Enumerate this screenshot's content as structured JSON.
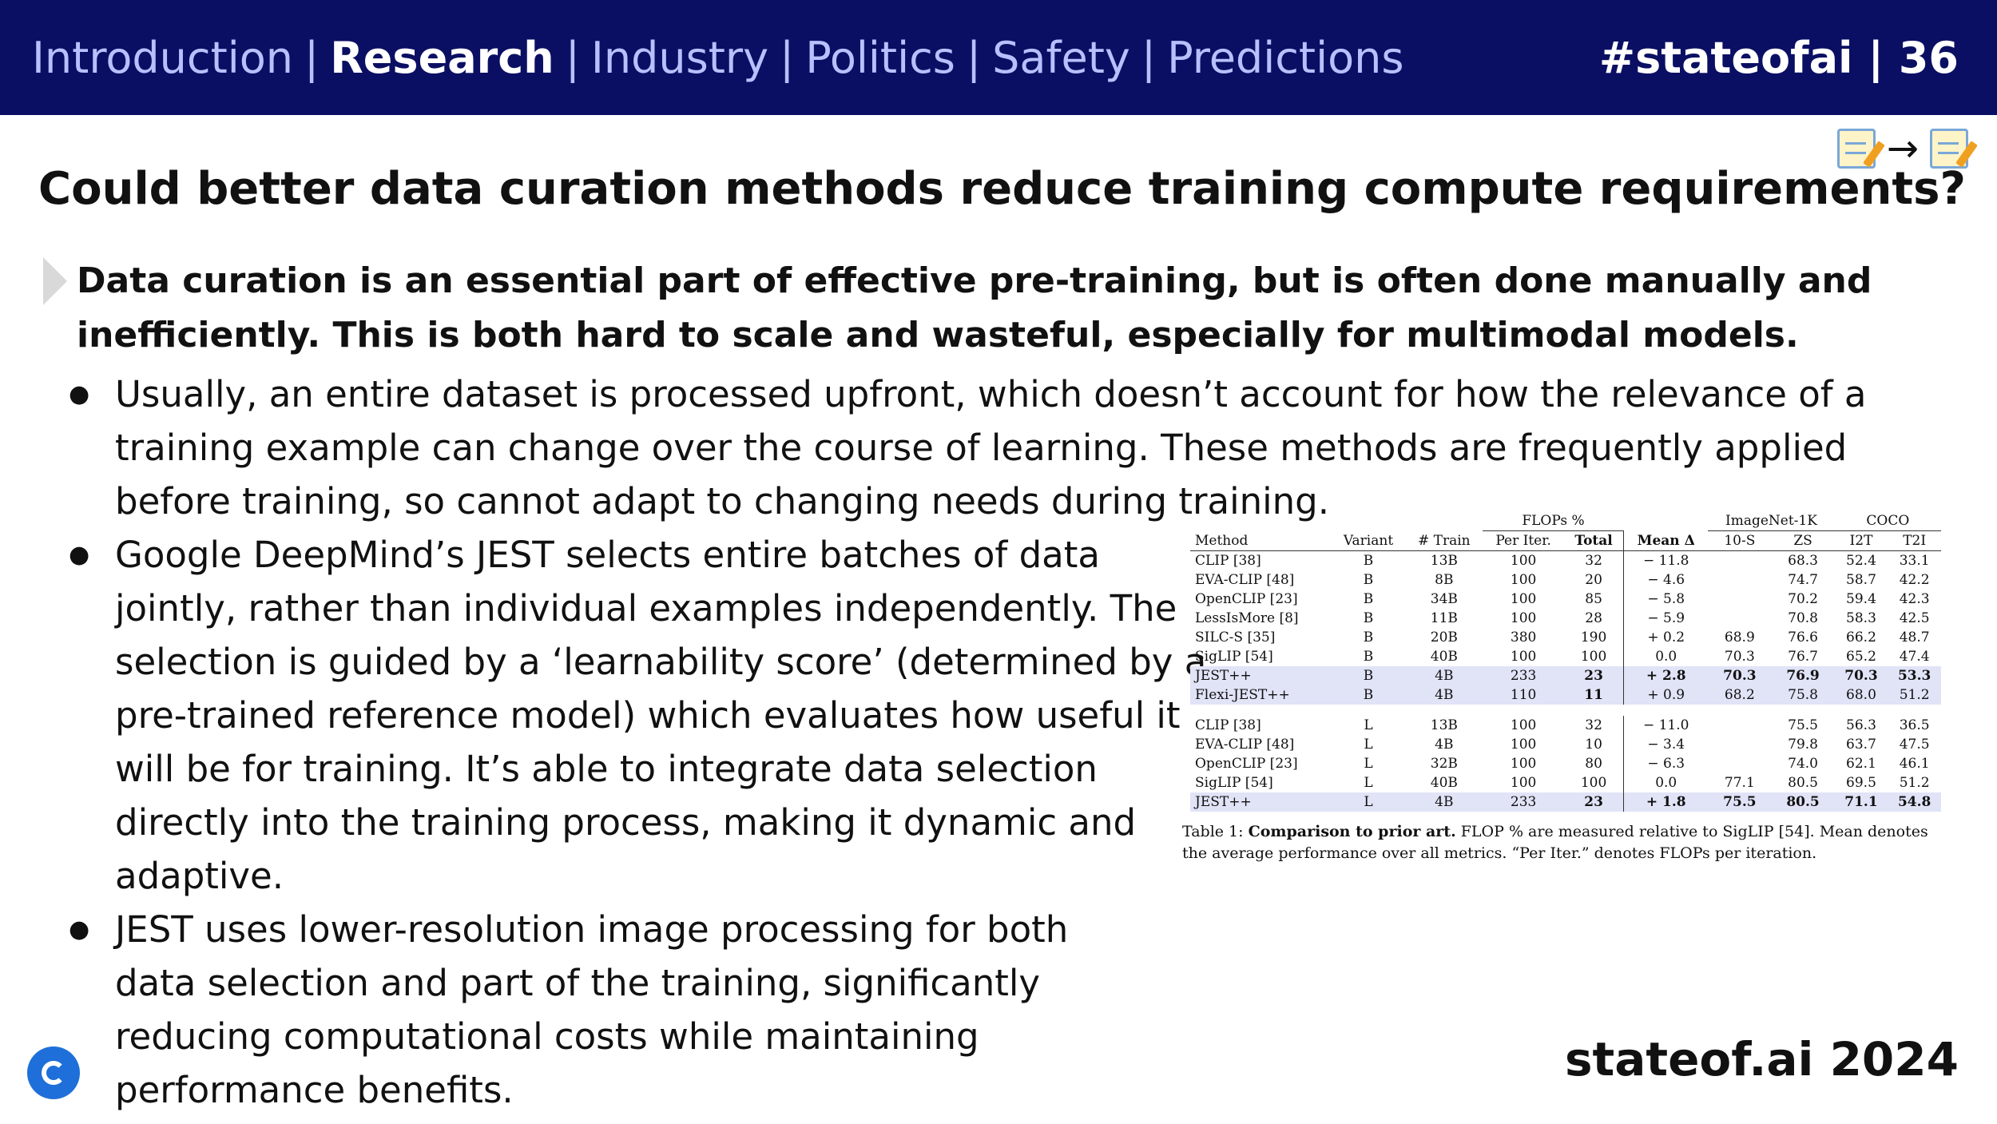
{
  "nav": {
    "items": [
      "Introduction",
      "Research",
      "Industry",
      "Politics",
      "Safety",
      "Predictions"
    ],
    "active": "Research",
    "separator": "|",
    "slide_id": "#stateofai | 36"
  },
  "badge": {
    "arrow": "→",
    "icons": [
      "memo-icon",
      "memo-icon"
    ]
  },
  "title": "Could better data curation methods reduce training compute requirements?",
  "lead": "Data curation is an essential part of effective pre-training, but is often done manually and inefficiently. This is both hard to scale and wasteful, especially for multimodal models.",
  "bullets": [
    "Usually, an entire dataset is processed upfront, which doesn’t account for how the relevance of a training example can change over the course of learning. These methods are frequently applied before training, so cannot adapt to changing needs during training.",
    "Google DeepMind’s JEST selects entire batches of data jointly, rather than individual examples independently. The selection is guided by a ‘learnability score’ (determined by a pre-trained reference model) which evaluates how useful it will be for training. It’s able to integrate data selection directly into the training process, making it dynamic and adaptive.",
    "JEST uses lower-resolution image processing for both data selection and part of the training, significantly reducing computational costs while maintaining performance benefits."
  ],
  "table": {
    "group_headers": {
      "flops": "FLOPs %",
      "imagenet": "ImageNet-1K",
      "coco": "COCO"
    },
    "columns": [
      "Method",
      "Variant",
      "# Train",
      "Per Iter.",
      "Total",
      "Mean Δ",
      "10-S",
      "ZS",
      "I2T",
      "T2I"
    ],
    "rows_b": [
      [
        "CLIP [38]",
        "B",
        "13B",
        "100",
        "32",
        "− 11.8",
        "",
        "68.3",
        "52.4",
        "33.1"
      ],
      [
        "EVA-CLIP [48]",
        "B",
        "8B",
        "100",
        "20",
        "− 4.6",
        "",
        "74.7",
        "58.7",
        "42.2"
      ],
      [
        "OpenCLIP [23]",
        "B",
        "34B",
        "100",
        "85",
        "− 5.8",
        "",
        "70.2",
        "59.4",
        "42.3"
      ],
      [
        "LessIsMore [8]",
        "B",
        "11B",
        "100",
        "28",
        "− 5.9",
        "",
        "70.8",
        "58.3",
        "42.5"
      ],
      [
        "SILC-S [35]",
        "B",
        "20B",
        "380",
        "190",
        "+ 0.2",
        "68.9",
        "76.6",
        "66.2",
        "48.7"
      ],
      [
        "SigLIP [54]",
        "B",
        "40B",
        "100",
        "100",
        "0.0",
        "70.3",
        "76.7",
        "65.2",
        "47.4"
      ],
      [
        "JEST++",
        "B",
        "4B",
        "233",
        "23",
        "+ 2.8",
        "70.3",
        "76.9",
        "70.3",
        "53.3"
      ],
      [
        "Flexi-JEST++",
        "B",
        "4B",
        "110",
        "11",
        "+ 0.9",
        "68.2",
        "75.8",
        "68.0",
        "51.2"
      ]
    ],
    "rows_l": [
      [
        "CLIP [38]",
        "L",
        "13B",
        "100",
        "32",
        "− 11.0",
        "",
        "75.5",
        "56.3",
        "36.5"
      ],
      [
        "EVA-CLIP [48]",
        "L",
        "4B",
        "100",
        "10",
        "− 3.4",
        "",
        "79.8",
        "63.7",
        "47.5"
      ],
      [
        "OpenCLIP [23]",
        "L",
        "32B",
        "100",
        "80",
        "− 6.3",
        "",
        "74.0",
        "62.1",
        "46.1"
      ],
      [
        "SigLIP [54]",
        "L",
        "40B",
        "100",
        "100",
        "0.0",
        "77.1",
        "80.5",
        "69.5",
        "51.2"
      ],
      [
        "JEST++",
        "L",
        "4B",
        "233",
        "23",
        "+ 1.8",
        "75.5",
        "80.5",
        "71.1",
        "54.8"
      ]
    ],
    "caption_prefix": "Table 1:",
    "caption_bold": "Comparison to prior art.",
    "caption_rest": "FLOP % are measured relative to SigLIP [54]. Mean denotes the average performance over all metrics. “Per Iter.” denotes FLOPs per iteration."
  },
  "footer": {
    "brand": "stateof.ai 2024",
    "logo": "deepmind-logo"
  },
  "colors": {
    "topbar": "#0b0f63",
    "nav_inactive": "#b8c0ff",
    "highlight_row": "#e1e3f7"
  }
}
